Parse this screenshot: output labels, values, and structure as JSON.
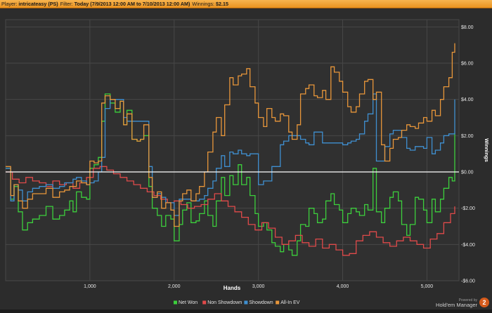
{
  "header": {
    "player_label": "Player:",
    "player_value": "intricateasy (PS)",
    "filter_label": "Filter:",
    "filter_value": "Today (7/9/2013 12:00 AM to 7/10/2013 12:00 AM)",
    "winnings_label": "Winnings:",
    "winnings_value": "$2.15"
  },
  "branding": {
    "powered_by": "Powered by",
    "product": "Hold'em Manager",
    "badge": "2"
  },
  "chart_data": {
    "type": "line",
    "xlabel": "Hands",
    "ylabel": "Winnings",
    "xlim": [
      0,
      5380
    ],
    "ylim": [
      -6,
      8.4
    ],
    "x_ticks": [
      1000,
      2000,
      3000,
      4000,
      5000
    ],
    "x_tick_labels": [
      "1,000",
      "2,000",
      "3,000",
      "4,000",
      "5,000"
    ],
    "y_ticks": [
      -6,
      -4,
      -2,
      0,
      2,
      4,
      6,
      8
    ],
    "y_tick_labels": [
      "-$6.00",
      "-$4.00",
      "-$2.00",
      "$0.00",
      "$2.00",
      "$4.00",
      "$6.00",
      "$8.00"
    ],
    "grid": true,
    "legend_position": "bottom-center",
    "background_color": "#2c2c2c",
    "series": [
      {
        "name": "Net Won",
        "color": "#3ccf3c",
        "x": [
          0,
          60,
          100,
          150,
          200,
          260,
          320,
          400,
          480,
          560,
          640,
          700,
          760,
          800,
          840,
          900,
          960,
          1000,
          1050,
          1100,
          1140,
          1180,
          1240,
          1300,
          1360,
          1400,
          1440,
          1500,
          1560,
          1600,
          1640,
          1700,
          1740,
          1800,
          1850,
          1900,
          1960,
          2000,
          2060,
          2100,
          2150,
          2200,
          2260,
          2300,
          2360,
          2400,
          2460,
          2500,
          2560,
          2600,
          2660,
          2700,
          2760,
          2800,
          2860,
          2900,
          2960,
          3000,
          3060,
          3100,
          3160,
          3200,
          3260,
          3300,
          3360,
          3400,
          3460,
          3500,
          3560,
          3600,
          3660,
          3700,
          3760,
          3800,
          3860,
          3900,
          3960,
          4000,
          4060,
          4100,
          4160,
          4200,
          4260,
          4300,
          4360,
          4400,
          4460,
          4500,
          4560,
          4600,
          4660,
          4700,
          4760,
          4800,
          4860,
          4900,
          4960,
          5000,
          5060,
          5100,
          5160,
          5200,
          5260,
          5300,
          5330
        ],
        "y": [
          0.2,
          -1.5,
          -0.8,
          -2.2,
          -3.2,
          -2.8,
          -2.6,
          -2.4,
          -1.9,
          -2.6,
          -2.4,
          -2.1,
          -1.6,
          -2.2,
          -1.1,
          -1.4,
          -1.5,
          0.2,
          0.4,
          0.8,
          2.8,
          4.3,
          3.8,
          3.3,
          3.9,
          2.6,
          3.4,
          1.8,
          1.7,
          1.8,
          2.0,
          -0.8,
          -2.0,
          -2.4,
          -3.0,
          -2.4,
          -2.6,
          -3.8,
          -2.9,
          -2.1,
          -1.7,
          -2.8,
          -2.7,
          -2.3,
          -1.6,
          -2.4,
          -3.0,
          -1.6,
          -0.3,
          -1.3,
          -0.2,
          -0.7,
          0.4,
          -0.7,
          -0.3,
          -1.3,
          -2.3,
          -3.0,
          -2.8,
          -3.2,
          -3.9,
          -4.1,
          -4.4,
          -4.0,
          -4.3,
          -4.6,
          -3.8,
          -2.9,
          -3.0,
          -2.0,
          -2.3,
          -2.8,
          -2.6,
          -1.6,
          -1.2,
          -1.8,
          -2.1,
          -2.8,
          -2.3,
          -2.0,
          -2.2,
          -2.4,
          -1.8,
          -2.1,
          0.2,
          -2.2,
          -2.8,
          -2.0,
          -1.4,
          -1.1,
          -1.6,
          -2.9,
          -3.5,
          -2.9,
          -1.4,
          -1.5,
          -2.1,
          -2.8,
          -1.5,
          -2.2,
          -1.5,
          -0.9,
          -0.3,
          -0.5,
          2.15
        ]
      },
      {
        "name": "Non Showdown",
        "color": "#e04a4a",
        "x": [
          0,
          80,
          160,
          240,
          320,
          400,
          480,
          560,
          640,
          720,
          800,
          880,
          960,
          1040,
          1120,
          1200,
          1280,
          1360,
          1440,
          1520,
          1600,
          1680,
          1760,
          1840,
          1920,
          2000,
          2080,
          2160,
          2240,
          2320,
          2400,
          2480,
          2560,
          2640,
          2720,
          2800,
          2880,
          2960,
          3040,
          3120,
          3200,
          3280,
          3360,
          3440,
          3520,
          3600,
          3680,
          3760,
          3840,
          3920,
          4000,
          4080,
          4160,
          4240,
          4320,
          4400,
          4480,
          4560,
          4640,
          4720,
          4800,
          4880,
          4960,
          5040,
          5120,
          5200,
          5280,
          5330
        ],
        "y": [
          0.0,
          -0.4,
          -0.6,
          -0.3,
          -0.5,
          -0.6,
          -0.8,
          -0.5,
          -0.7,
          -0.6,
          -0.9,
          -0.6,
          -0.3,
          0.2,
          0.3,
          0.1,
          -0.1,
          -0.3,
          -0.5,
          -0.7,
          -0.9,
          -1.1,
          -1.3,
          -1.5,
          -1.7,
          -1.6,
          -1.8,
          -2.0,
          -1.9,
          -1.8,
          -1.5,
          -1.2,
          -1.6,
          -1.9,
          -2.2,
          -2.5,
          -2.9,
          -3.2,
          -2.8,
          -3.1,
          -3.6,
          -4.0,
          -3.8,
          -3.5,
          -3.9,
          -4.1,
          -3.7,
          -4.2,
          -4.0,
          -4.3,
          -4.6,
          -4.5,
          -3.8,
          -3.5,
          -3.3,
          -3.6,
          -3.9,
          -4.1,
          -3.8,
          -3.6,
          -3.8,
          -4.0,
          -4.2,
          -3.7,
          -3.4,
          -2.8,
          -2.3,
          -1.9
        ]
      },
      {
        "name": "Showdown",
        "color": "#3f8fd0",
        "x": [
          0,
          60,
          100,
          150,
          200,
          260,
          320,
          400,
          480,
          560,
          640,
          700,
          760,
          800,
          840,
          900,
          960,
          1000,
          1050,
          1100,
          1140,
          1180,
          1240,
          1300,
          1360,
          1400,
          1440,
          1500,
          1560,
          1600,
          1640,
          1700,
          1740,
          1800,
          1850,
          1900,
          1960,
          2000,
          2060,
          2100,
          2150,
          2200,
          2260,
          2300,
          2360,
          2400,
          2460,
          2500,
          2560,
          2600,
          2660,
          2700,
          2760,
          2800,
          2860,
          2900,
          2960,
          3000,
          3060,
          3100,
          3160,
          3200,
          3260,
          3300,
          3360,
          3400,
          3460,
          3500,
          3560,
          3600,
          3660,
          3700,
          3760,
          3800,
          3860,
          3900,
          3960,
          4000,
          4060,
          4100,
          4160,
          4200,
          4260,
          4300,
          4360,
          4400,
          4460,
          4500,
          4560,
          4600,
          4660,
          4700,
          4760,
          4800,
          4860,
          4900,
          4960,
          5000,
          5060,
          5100,
          5160,
          5200,
          5260,
          5300,
          5330
        ],
        "y": [
          0.2,
          -1.6,
          -0.7,
          -1.0,
          -1.6,
          -1.1,
          -0.9,
          -0.8,
          -0.7,
          -0.9,
          -0.8,
          -0.6,
          -0.6,
          -0.4,
          -0.3,
          -0.5,
          -0.7,
          -0.6,
          -0.5,
          0.0,
          0.8,
          3.5,
          4.0,
          4.0,
          4.0,
          3.0,
          2.8,
          2.8,
          2.8,
          2.8,
          2.8,
          0.3,
          -1.4,
          -1.2,
          -1.4,
          -1.7,
          -1.7,
          -2.4,
          -1.5,
          -1.5,
          -1.5,
          -1.6,
          -1.6,
          -1.5,
          -1.3,
          -0.9,
          -0.5,
          0.2,
          0.9,
          0.3,
          1.1,
          1.0,
          1.2,
          1.0,
          0.9,
          1.0,
          1.0,
          -0.7,
          -0.5,
          -0.5,
          0.3,
          0.3,
          1.5,
          1.7,
          2.0,
          2.0,
          2.0,
          1.8,
          1.6,
          1.5,
          2.2,
          2.2,
          1.6,
          1.6,
          1.6,
          1.6,
          1.6,
          1.5,
          1.6,
          1.7,
          1.8,
          2.1,
          2.8,
          3.2,
          4.3,
          0.6,
          0.6,
          1.4,
          2.1,
          2.3,
          2.3,
          1.9,
          1.3,
          1.2,
          1.4,
          1.4,
          1.3,
          1.9,
          1.0,
          1.2,
          1.6,
          2.0,
          2.1,
          2.1,
          4.0
        ]
      },
      {
        "name": "All-In EV",
        "color": "#e8963a",
        "x": [
          0,
          60,
          100,
          150,
          200,
          260,
          320,
          400,
          480,
          560,
          640,
          700,
          760,
          800,
          840,
          900,
          960,
          1000,
          1050,
          1100,
          1140,
          1180,
          1240,
          1300,
          1360,
          1400,
          1440,
          1500,
          1560,
          1600,
          1640,
          1700,
          1740,
          1800,
          1850,
          1900,
          1960,
          2000,
          2060,
          2100,
          2150,
          2200,
          2260,
          2300,
          2360,
          2400,
          2460,
          2500,
          2560,
          2600,
          2660,
          2700,
          2760,
          2800,
          2860,
          2900,
          2960,
          3000,
          3060,
          3100,
          3160,
          3200,
          3260,
          3300,
          3360,
          3400,
          3460,
          3500,
          3560,
          3600,
          3660,
          3700,
          3760,
          3800,
          3860,
          3900,
          3960,
          4000,
          4060,
          4100,
          4160,
          4200,
          4260,
          4300,
          4360,
          4400,
          4460,
          4500,
          4560,
          4600,
          4660,
          4700,
          4760,
          4800,
          4860,
          4900,
          4960,
          5000,
          5060,
          5100,
          5160,
          5200,
          5260,
          5300,
          5330
        ],
        "y": [
          0.3,
          -1.3,
          -0.7,
          -1.6,
          -2.0,
          -1.5,
          -1.2,
          -1.2,
          -0.9,
          -1.4,
          -1.1,
          -1.0,
          -0.8,
          -0.8,
          -0.5,
          -0.6,
          -0.7,
          0.6,
          0.5,
          0.6,
          3.8,
          4.2,
          4.0,
          3.5,
          3.9,
          2.6,
          3.2,
          1.8,
          1.7,
          1.8,
          2.6,
          -0.3,
          -1.4,
          -1.1,
          -2.0,
          -1.7,
          -2.1,
          -3.0,
          -1.6,
          -1.2,
          -1.0,
          -1.6,
          -1.2,
          -0.8,
          0.0,
          1.1,
          2.2,
          3.0,
          2.0,
          3.7,
          5.2,
          4.8,
          5.3,
          5.4,
          5.7,
          4.7,
          3.8,
          3.0,
          2.5,
          3.5,
          3.0,
          2.8,
          3.2,
          3.1,
          2.2,
          1.8,
          2.6,
          4.3,
          4.6,
          4.8,
          4.2,
          4.1,
          4.5,
          4.0,
          5.8,
          5.5,
          5.0,
          4.4,
          3.6,
          3.3,
          3.6,
          4.3,
          5.0,
          5.1,
          4.0,
          4.4,
          1.5,
          0.6,
          1.3,
          1.8,
          1.9,
          2.3,
          2.6,
          2.5,
          2.4,
          2.7,
          3.0,
          2.8,
          3.4,
          3.1,
          4.0,
          4.7,
          5.2,
          6.6,
          7.1
        ]
      }
    ]
  }
}
